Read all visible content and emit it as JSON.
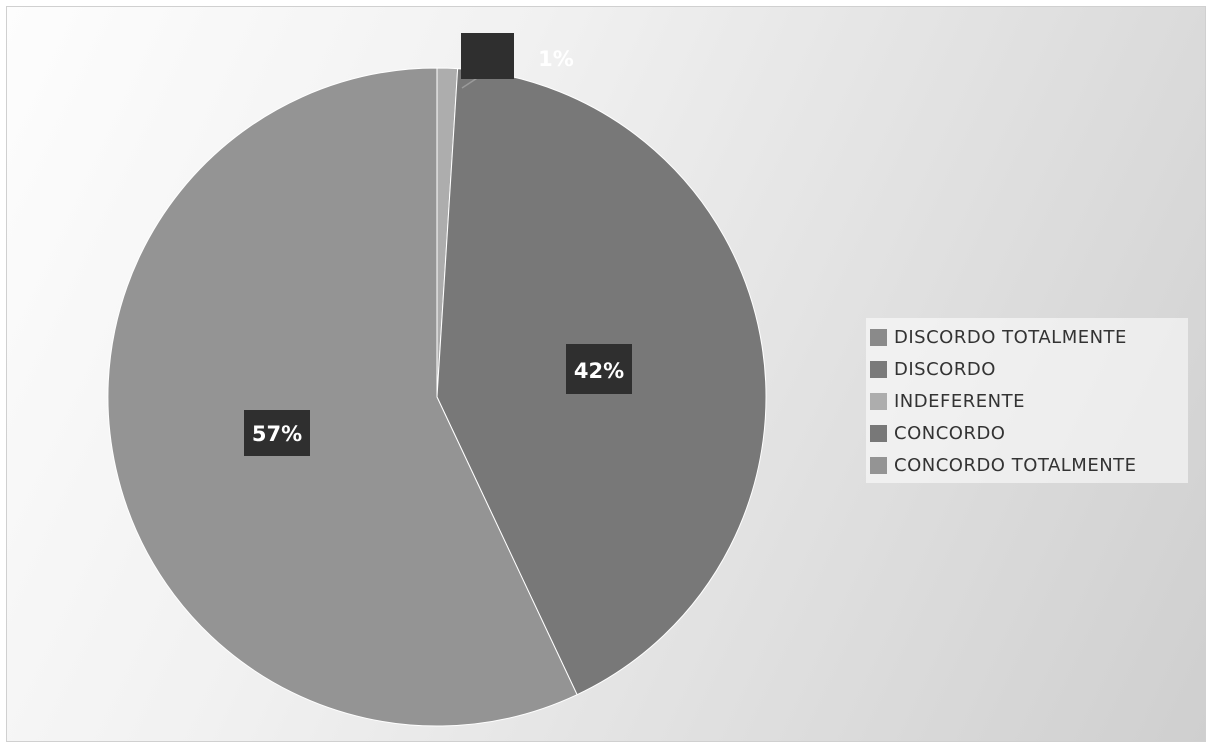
{
  "chart_data": {
    "type": "pie",
    "categories": [
      "DISCORDO TOTALMENTE",
      "DISCORDO",
      "INDEFERENTE",
      "CONCORDO",
      "CONCORDO TOTALMENTE"
    ],
    "values": [
      0,
      0,
      1,
      42,
      57
    ],
    "data_labels": [
      "",
      "",
      "1%",
      "42%",
      "57%"
    ],
    "colors": [
      "#8a8a8a",
      "#7a7a7a",
      "#adadad",
      "#787878",
      "#949494"
    ],
    "legend_position": "right"
  }
}
